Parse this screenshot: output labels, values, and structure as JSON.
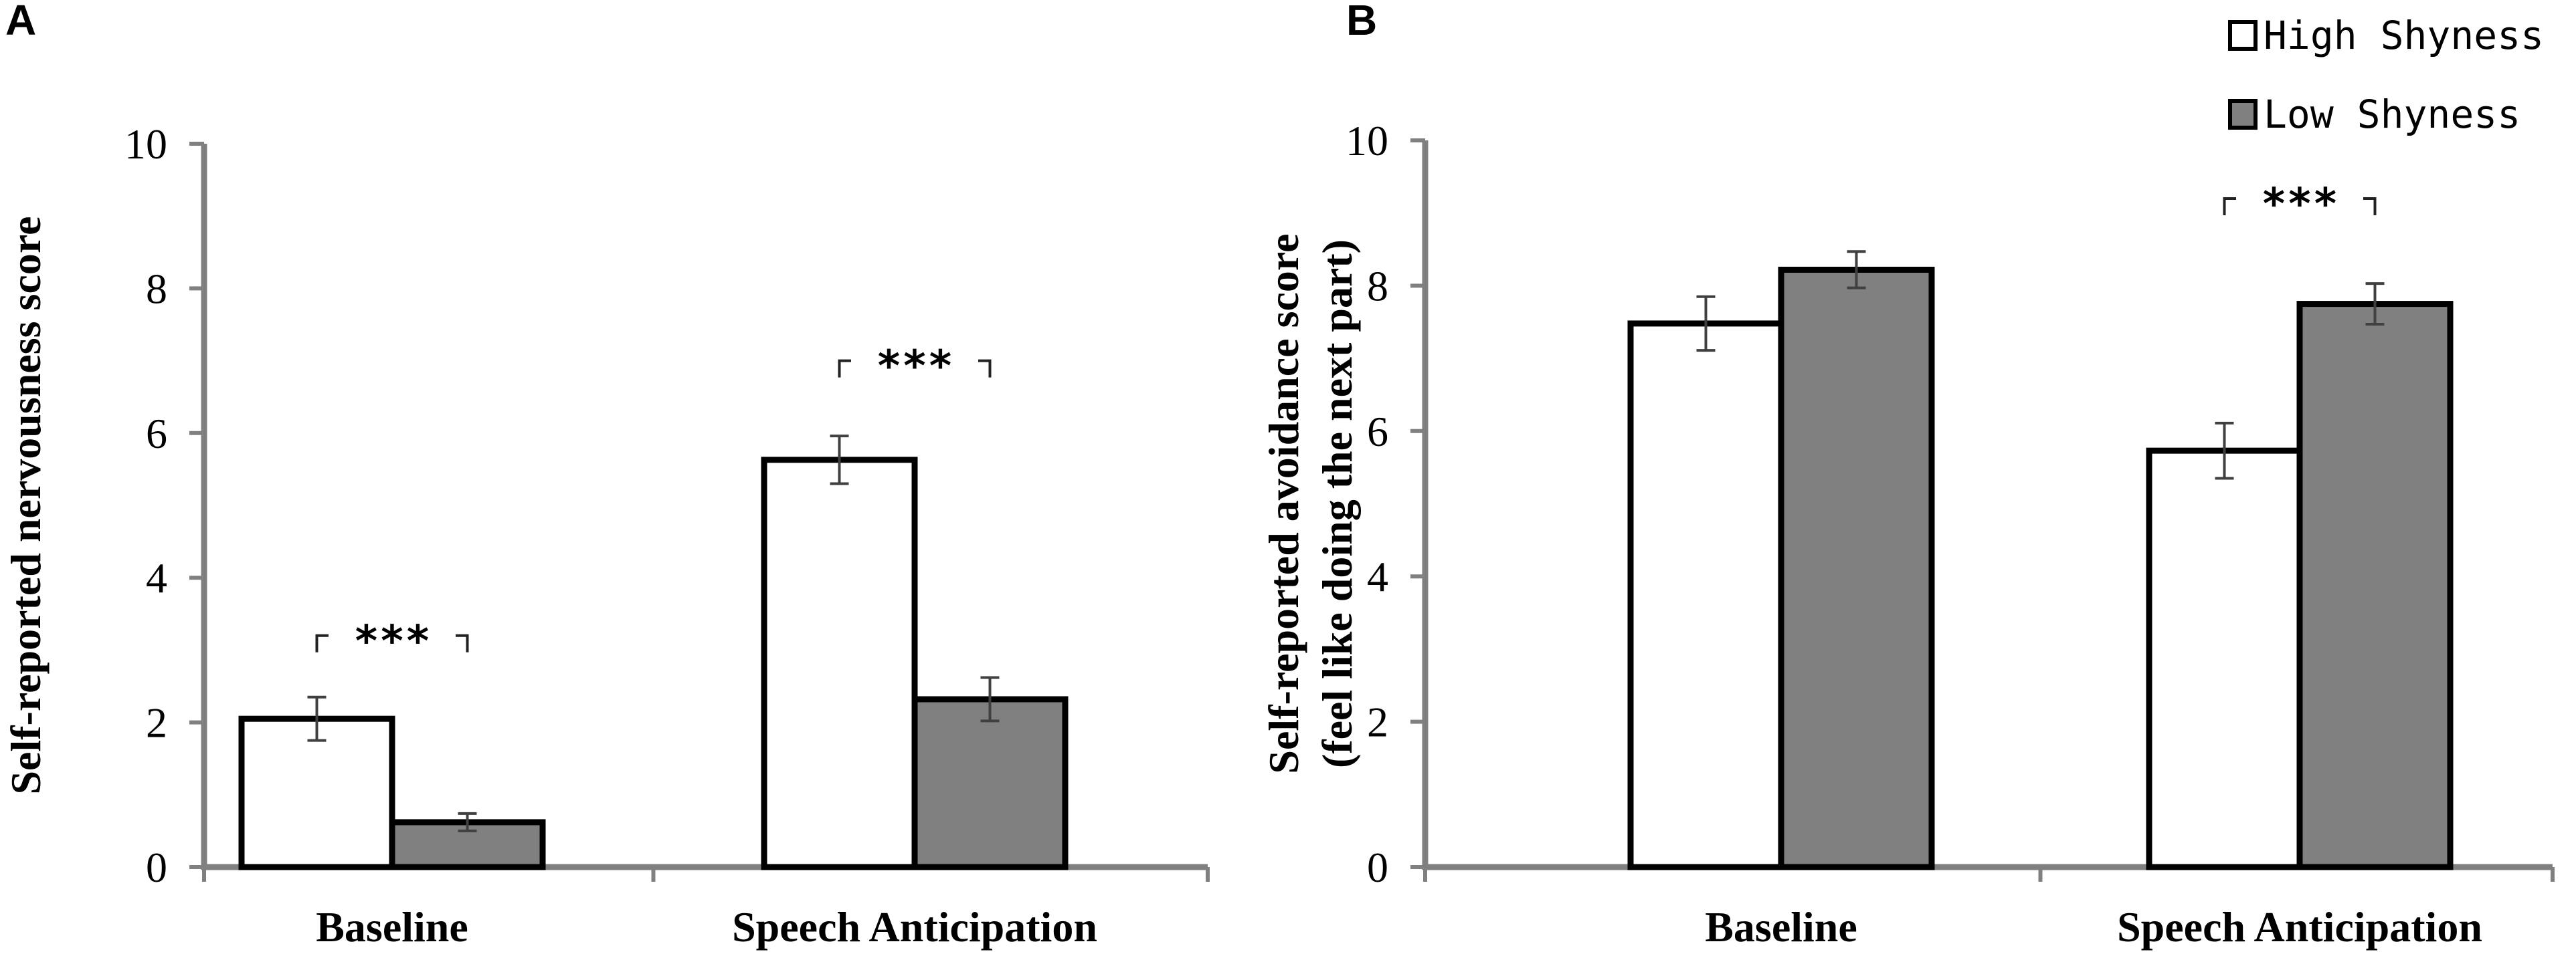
{
  "legend": {
    "items": [
      {
        "label": "High Shyness",
        "color": "#ffffff"
      },
      {
        "label": "Low Shyness",
        "color": "#808080"
      }
    ]
  },
  "colors": {
    "axis": "#808080",
    "bar_edge": "#000000",
    "error_bar": "#404040"
  },
  "chart_data": [
    {
      "type": "bar",
      "panel_label": "A",
      "ylabel": "Self-reported nervousness score",
      "ylabel_lines": [
        "Self-reported nervousness score"
      ],
      "ylim": [
        0,
        10
      ],
      "yticks": [
        0,
        2,
        4,
        6,
        8,
        10
      ],
      "categories": [
        "Baseline",
        "Speech Anticipation"
      ],
      "series": [
        {
          "name": "High Shyness",
          "values": [
            2.05,
            5.63
          ],
          "errors": [
            0.3,
            0.33
          ]
        },
        {
          "name": "Low Shyness",
          "values": [
            0.62,
            2.32
          ],
          "errors": [
            0.12,
            0.3
          ]
        }
      ],
      "annotations": [
        {
          "text": "***",
          "category_index": 0,
          "level": 3.2
        },
        {
          "text": "***",
          "category_index": 1,
          "level": 7.0
        }
      ]
    },
    {
      "type": "bar",
      "panel_label": "B",
      "ylabel": "Self-reported avoidance score (feel like doing the next part)",
      "ylabel_lines": [
        "Self-reported avoidance score",
        "(feel like doing the next part)"
      ],
      "ylim": [
        0,
        10
      ],
      "yticks": [
        0,
        2,
        4,
        6,
        8,
        10
      ],
      "categories": [
        "Baseline",
        "Speech Anticipation"
      ],
      "series": [
        {
          "name": "High Shyness",
          "values": [
            7.48,
            5.73
          ],
          "errors": [
            0.37,
            0.38
          ]
        },
        {
          "name": "Low Shyness",
          "values": [
            8.22,
            7.75
          ],
          "errors": [
            0.25,
            0.28
          ]
        }
      ],
      "annotations": [
        {
          "text": "***",
          "category_index": 1,
          "level": 9.2
        }
      ]
    }
  ]
}
